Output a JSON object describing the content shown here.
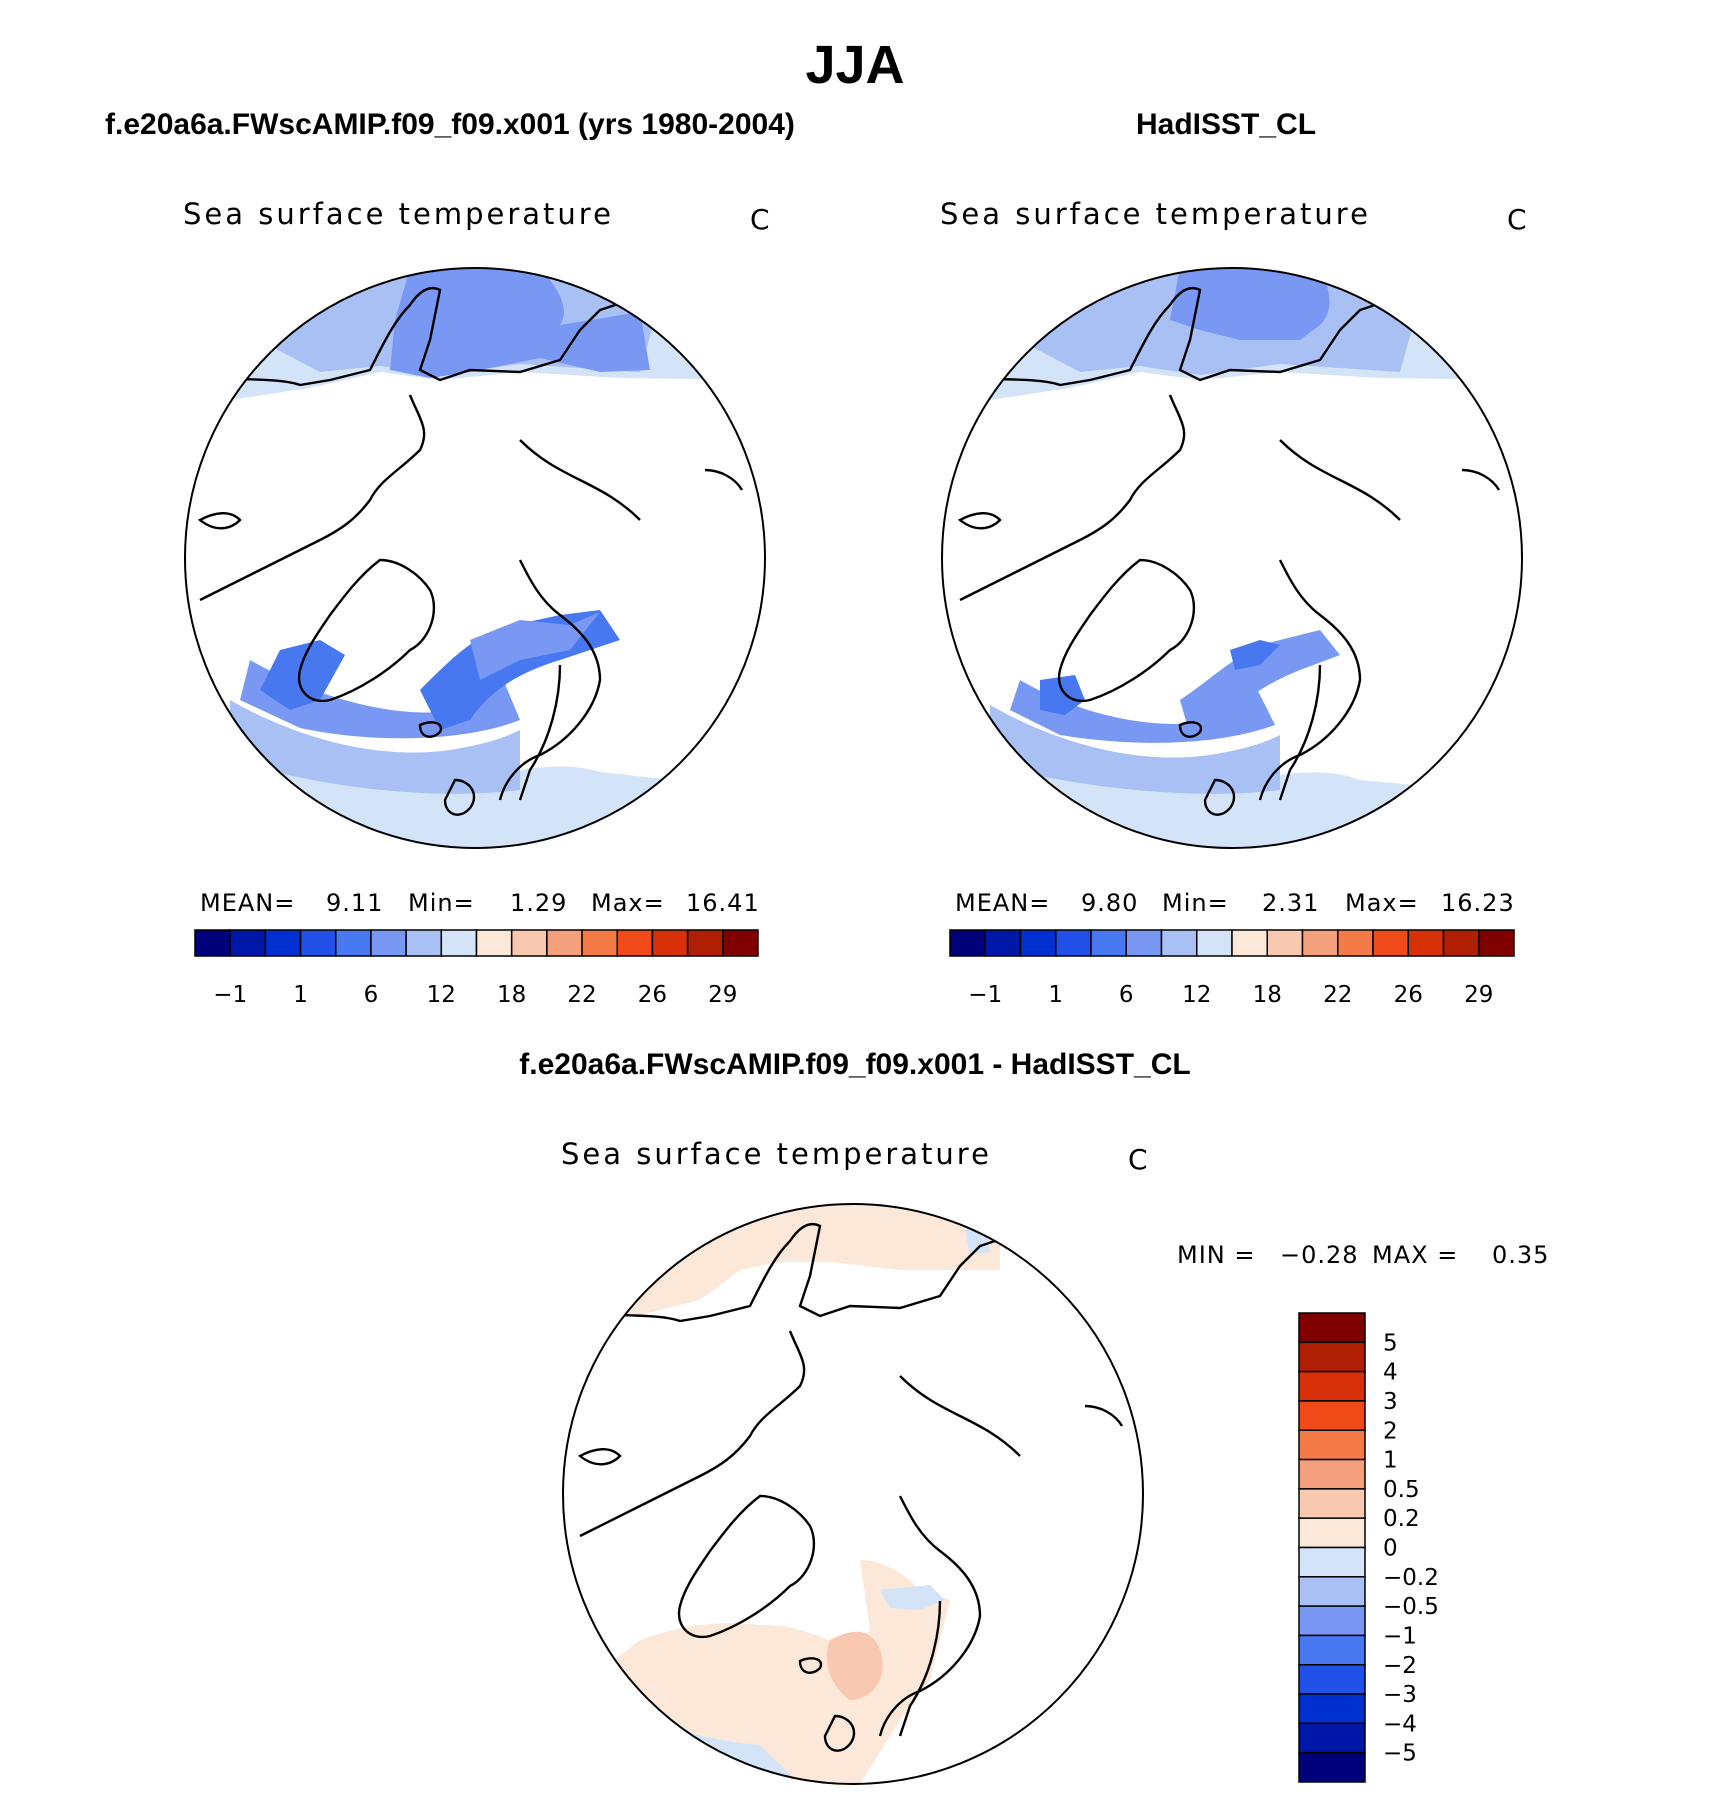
{
  "title": "JJA",
  "panels": [
    {
      "subtitle": "f.e20a6a.FWscAMIP.f09_f09.x001 (yrs 1980-2004)",
      "variable": "Sea surface temperature",
      "units": "C",
      "stats": {
        "mean_label": "MEAN=",
        "mean": "9.11",
        "min_label": "Min=",
        "min": "1.29",
        "max_label": "Max=",
        "max": "16.41"
      }
    },
    {
      "subtitle": "HadISST_CL",
      "variable": "Sea surface temperature",
      "units": "C",
      "stats": {
        "mean_label": "MEAN=",
        "mean": "9.80",
        "min_label": "Min=",
        "min": "2.31",
        "max_label": "Max=",
        "max": "16.23"
      }
    },
    {
      "subtitle": "f.e20a6a.FWscAMIP.f09_f09.x001 - HadISST_CL",
      "variable": "Sea surface temperature",
      "units": "C",
      "stats": {
        "min_label": "MIN =",
        "min": "−0.28",
        "max_label": "MAX =",
        "max": "0.35"
      }
    }
  ],
  "colorbar_main": {
    "colors": [
      "#00007a",
      "#0018a8",
      "#0030d0",
      "#2050e8",
      "#4878f0",
      "#7898f4",
      "#a8c0f4",
      "#d4e4f8",
      "#fce8d8",
      "#f8c8b0",
      "#f4a07c",
      "#f47a48",
      "#f04a18",
      "#d83008",
      "#b01e04",
      "#800000"
    ],
    "tick_labels": [
      "−1",
      "1",
      "6",
      "12",
      "18",
      "22",
      "26",
      "29"
    ]
  },
  "colorbar_diff": {
    "colors": [
      "#800000",
      "#b01e04",
      "#d83008",
      "#f04a18",
      "#f47a48",
      "#f4a07c",
      "#f8c8b0",
      "#fce8d8",
      "#d4e4f8",
      "#a8c0f4",
      "#7898f4",
      "#4878f0",
      "#2050e8",
      "#0030d0",
      "#0018a8",
      "#00007a"
    ],
    "tick_labels": [
      "5",
      "4",
      "3",
      "2",
      "1",
      "0.5",
      "0.2",
      "0",
      "−0.2",
      "−0.5",
      "−1",
      "−2",
      "−3",
      "−4",
      "−5"
    ]
  },
  "chart_data": [
    {
      "type": "heatmap",
      "projection": "north polar stereographic",
      "title": "f.e20a6a.FWscAMIP.f09_f09.x001 (yrs 1980-2004)",
      "variable": "Sea surface temperature",
      "units": "C",
      "mean": 9.11,
      "min": 1.29,
      "max": 16.41,
      "contour_levels": [
        -1,
        1,
        6,
        12,
        18,
        22,
        26,
        29
      ]
    },
    {
      "type": "heatmap",
      "projection": "north polar stereographic",
      "title": "HadISST_CL",
      "variable": "Sea surface temperature",
      "units": "C",
      "mean": 9.8,
      "min": 2.31,
      "max": 16.23,
      "contour_levels": [
        -1,
        1,
        6,
        12,
        18,
        22,
        26,
        29
      ]
    },
    {
      "type": "heatmap",
      "projection": "north polar stereographic",
      "title": "f.e20a6a.FWscAMIP.f09_f09.x001 - HadISST_CL",
      "variable": "Sea surface temperature",
      "units": "C",
      "min": -0.28,
      "max": 0.35,
      "contour_levels": [
        -5,
        -4,
        -3,
        -2,
        -1,
        -0.5,
        -0.2,
        0,
        0.2,
        0.5,
        1,
        2,
        3,
        4,
        5
      ]
    }
  ]
}
